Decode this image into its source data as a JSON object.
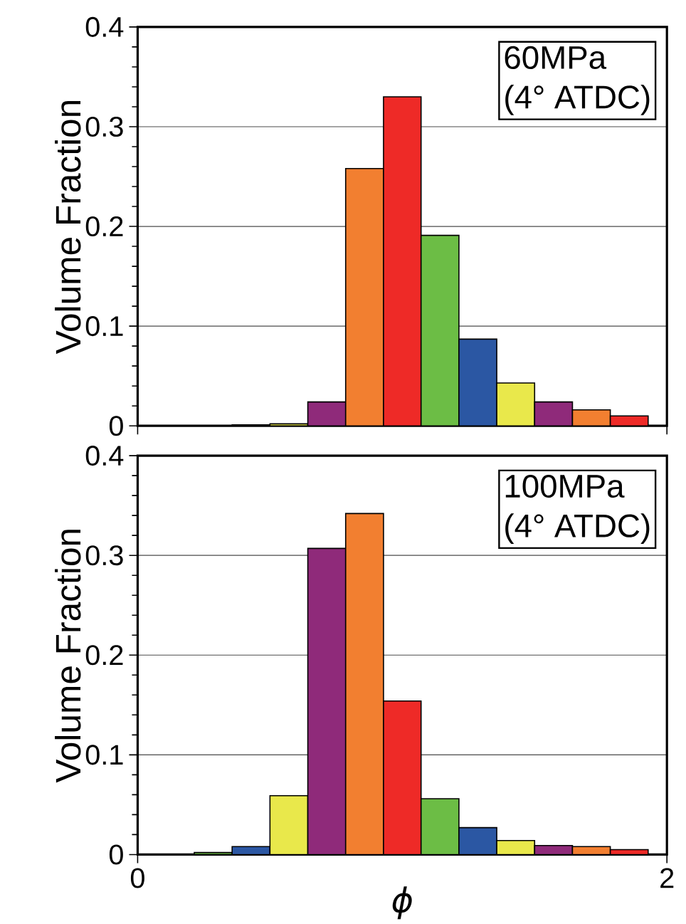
{
  "chart_data": [
    {
      "type": "histogram",
      "ylabel": "Volume Fraction",
      "annotations": [
        "60MPa",
        "(4°  ATDC)"
      ],
      "bins": [
        0.071,
        0.214,
        0.357,
        0.5,
        0.643,
        0.786,
        0.929,
        1.071,
        1.214,
        1.357,
        1.5,
        1.643,
        1.786,
        1.929
      ],
      "values": [
        null,
        null,
        0.001,
        0.002,
        0.024,
        0.258,
        0.33,
        0.191,
        0.087,
        0.043,
        0.024,
        0.016,
        0.01
      ],
      "colors": [
        "#ee2a27",
        "#6cbd45",
        "#2b57a3",
        "#e9e84b",
        "#8f2a7a",
        "#f27f30",
        "#ee2a27",
        "#6cbd45",
        "#2b57a3",
        "#e9e84b",
        "#8f2a7a",
        "#f27f30",
        "#ee2a27"
      ],
      "xlim": [
        0,
        2
      ],
      "xticks": [
        0,
        2
      ],
      "ylim": [
        0,
        0.4
      ],
      "yticks": [
        0,
        0.1,
        0.2,
        0.3,
        0.4
      ],
      "grid": "y",
      "tick_labels": "y"
    },
    {
      "type": "histogram",
      "xlabel": "ϕ",
      "ylabel": "Volume Fraction",
      "annotations": [
        "100MPa",
        "(4°  ATDC)"
      ],
      "bins": [
        0.071,
        0.214,
        0.357,
        0.5,
        0.643,
        0.786,
        0.929,
        1.071,
        1.214,
        1.357,
        1.5,
        1.643,
        1.786,
        1.929
      ],
      "values": [
        null,
        0.002,
        0.008,
        0.059,
        0.307,
        0.342,
        0.154,
        0.056,
        0.027,
        0.014,
        0.009,
        0.008,
        0.005
      ],
      "colors": [
        "#ee2a27",
        "#6cbd45",
        "#2b57a3",
        "#e9e84b",
        "#8f2a7a",
        "#f27f30",
        "#ee2a27",
        "#6cbd45",
        "#2b57a3",
        "#e9e84b",
        "#8f2a7a",
        "#f27f30",
        "#ee2a27"
      ],
      "xlim": [
        0,
        2
      ],
      "xticks": [
        0,
        2
      ],
      "ylim": [
        0,
        0.4
      ],
      "yticks": [
        0,
        0.1,
        0.2,
        0.3,
        0.4
      ],
      "grid": "y"
    }
  ]
}
